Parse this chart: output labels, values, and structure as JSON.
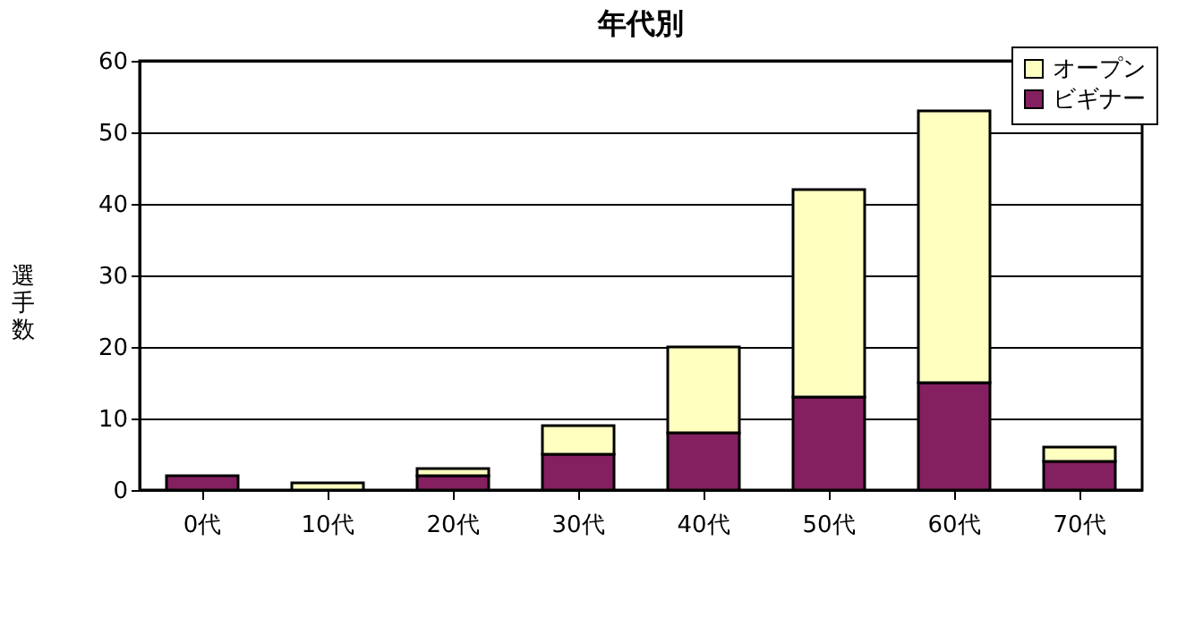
{
  "chart_data": {
    "type": "bar",
    "title": "年代別",
    "ylabel": "選手数",
    "categories": [
      "0代",
      "10代",
      "20代",
      "30代",
      "40代",
      "50代",
      "60代",
      "70代"
    ],
    "stacked": true,
    "series": [
      {
        "name": "ビギナー",
        "color": "#842060",
        "values": [
          2,
          0,
          2,
          5,
          8,
          13,
          15,
          4
        ]
      },
      {
        "name": "オープン",
        "color": "#ffffc0",
        "values": [
          0,
          1,
          1,
          4,
          12,
          29,
          38,
          2
        ]
      }
    ],
    "ylim": [
      0,
      60
    ],
    "yticks": [
      0,
      10,
      20,
      30,
      40,
      50,
      60
    ],
    "grid": "y",
    "legend": "top right"
  }
}
